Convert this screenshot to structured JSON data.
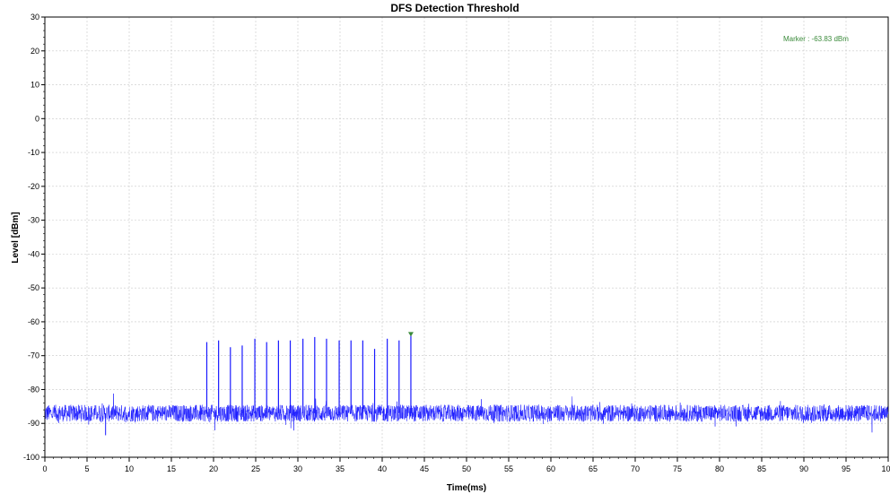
{
  "chart_data": {
    "type": "line",
    "title": "DFS Detection Threshold",
    "xlabel": "Time(ms)",
    "ylabel": "Level [dBm]",
    "xlim": [
      0,
      100
    ],
    "ylim": [
      -100,
      30
    ],
    "x_ticks": [
      0,
      5,
      10,
      15,
      20,
      25,
      30,
      35,
      40,
      45,
      50,
      55,
      60,
      65,
      70,
      75,
      80,
      85,
      90,
      95,
      100
    ],
    "y_ticks": [
      30,
      20,
      10,
      0,
      -10,
      -20,
      -30,
      -40,
      -50,
      -60,
      -70,
      -80,
      -90,
      -100
    ],
    "grid": true,
    "line_color": "#1a1aff",
    "marker_color": "#3a8a3a",
    "series": [
      {
        "noise_floor": -87,
        "noise_amplitude": 2.5,
        "pulses": [
          {
            "x": 19.2,
            "y": -66
          },
          {
            "x": 20.6,
            "y": -65.5
          },
          {
            "x": 22.0,
            "y": -67.5
          },
          {
            "x": 23.4,
            "y": -67
          },
          {
            "x": 24.9,
            "y": -65
          },
          {
            "x": 26.3,
            "y": -66
          },
          {
            "x": 27.7,
            "y": -65.5
          },
          {
            "x": 29.1,
            "y": -65.5
          },
          {
            "x": 30.6,
            "y": -65
          },
          {
            "x": 32.0,
            "y": -64.5
          },
          {
            "x": 33.4,
            "y": -65
          },
          {
            "x": 34.9,
            "y": -65.5
          },
          {
            "x": 36.3,
            "y": -65.5
          },
          {
            "x": 37.7,
            "y": -65.5
          },
          {
            "x": 39.1,
            "y": -68
          },
          {
            "x": 40.6,
            "y": -65
          },
          {
            "x": 42.0,
            "y": -65.5
          },
          {
            "x": 43.4,
            "y": -63.83
          }
        ]
      }
    ],
    "marker": {
      "x": 43.4,
      "y": -63.83,
      "label": "Marker : -63.83 dBm"
    }
  }
}
